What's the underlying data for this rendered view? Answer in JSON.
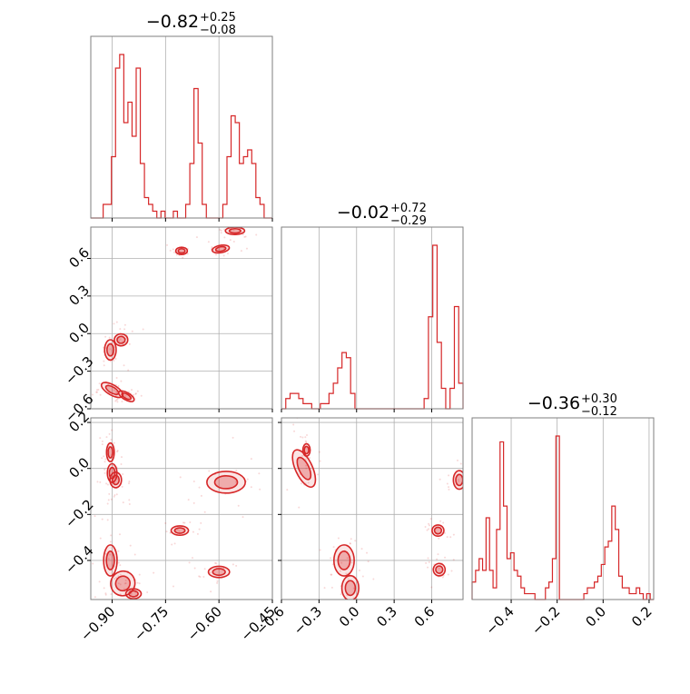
{
  "chart_data": {
    "type": "corner",
    "color": "#d62728",
    "parameters": [
      {
        "range": [
          -0.96,
          -0.45
        ],
        "ticks": [
          -0.9,
          -0.75,
          -0.6,
          -0.45
        ],
        "tick_labels": [
          "−0.90",
          "−0.75",
          "−0.60",
          "−0.45"
        ]
      },
      {
        "range": [
          -0.6,
          0.85
        ],
        "ticks": [
          -0.6,
          -0.3,
          0.0,
          0.3,
          0.6
        ],
        "tick_labels": [
          "−0.6",
          "−0.3",
          "0.0",
          "0.3",
          "0.6"
        ]
      },
      {
        "range": [
          -0.57,
          0.22
        ],
        "ticks": [
          -0.4,
          -0.2,
          0.0,
          0.2
        ],
        "tick_labels": [
          "−0.4",
          "−0.2",
          "0.0",
          "0.2"
        ]
      }
    ],
    "titles": [
      {
        "median": "−0.82",
        "plus": "+0.25",
        "minus": "−0.08"
      },
      {
        "median": "−0.02",
        "plus": "+0.72",
        "minus": "−0.29"
      },
      {
        "median": "−0.36",
        "plus": "+0.30",
        "minus": "−0.12"
      }
    ],
    "histograms": [
      {
        "values": [
          0,
          0,
          0,
          2,
          2,
          9,
          22,
          24,
          14,
          17,
          12,
          22,
          8,
          3,
          2,
          1,
          0,
          1,
          0,
          0,
          1,
          0,
          0,
          2,
          8,
          19,
          11,
          2,
          0,
          0,
          0,
          0,
          2,
          9,
          15,
          14,
          8,
          9,
          10,
          8,
          3,
          2,
          0,
          0
        ]
      },
      {
        "values": [
          0,
          2,
          3,
          3,
          2,
          1,
          1,
          0,
          0,
          1,
          1,
          3,
          5,
          8,
          11,
          10,
          3,
          0,
          0,
          0,
          0,
          0,
          0,
          0,
          0,
          0,
          0,
          0,
          0,
          0,
          0,
          0,
          0,
          2,
          18,
          32,
          13,
          4,
          0,
          4,
          20,
          5
        ]
      },
      {
        "values": [
          3,
          5,
          7,
          5,
          14,
          5,
          2,
          12,
          27,
          16,
          7,
          8,
          5,
          4,
          2,
          1,
          1,
          1,
          0,
          0,
          0,
          2,
          3,
          7,
          28,
          0,
          0,
          0,
          0,
          0,
          0,
          0,
          1,
          2,
          2,
          3,
          4,
          6,
          9,
          10,
          16,
          12,
          4,
          2,
          2,
          1,
          1,
          2,
          1,
          0,
          1,
          0
        ]
      }
    ],
    "contour_panels": [
      {
        "x": 0,
        "y": 1,
        "blobs": [
          {
            "x": -0.705,
            "y": 0.66,
            "sx": 0.012,
            "sy": 0.015,
            "rot": 0
          },
          {
            "x": -0.595,
            "y": 0.675,
            "sx": 0.018,
            "sy": 0.018,
            "rot": 10
          },
          {
            "x": -0.555,
            "y": 0.82,
            "sx": 0.02,
            "sy": 0.018,
            "rot": 0
          },
          {
            "x": -0.875,
            "y": -0.05,
            "sx": 0.014,
            "sy": 0.035,
            "rot": 0
          },
          {
            "x": -0.905,
            "y": -0.13,
            "sx": 0.012,
            "sy": 0.06,
            "rot": 0
          },
          {
            "x": -0.9,
            "y": -0.45,
            "sx": 0.025,
            "sy": 0.03,
            "rot": -30
          },
          {
            "x": -0.86,
            "y": -0.5,
            "sx": 0.018,
            "sy": 0.015,
            "rot": -30
          }
        ]
      },
      {
        "x": 0,
        "y": 2,
        "blobs": [
          {
            "x": -0.905,
            "y": 0.07,
            "sx": 0.008,
            "sy": 0.03,
            "rot": 0
          },
          {
            "x": -0.9,
            "y": -0.02,
            "sx": 0.01,
            "sy": 0.03,
            "rot": 0
          },
          {
            "x": -0.89,
            "y": -0.05,
            "sx": 0.012,
            "sy": 0.025,
            "rot": 0
          },
          {
            "x": -0.58,
            "y": -0.06,
            "sx": 0.04,
            "sy": 0.035,
            "rot": 0
          },
          {
            "x": -0.71,
            "y": -0.27,
            "sx": 0.018,
            "sy": 0.015,
            "rot": 0
          },
          {
            "x": -0.6,
            "y": -0.45,
            "sx": 0.022,
            "sy": 0.018,
            "rot": 0
          },
          {
            "x": -0.905,
            "y": -0.4,
            "sx": 0.014,
            "sy": 0.05,
            "rot": 0
          },
          {
            "x": -0.87,
            "y": -0.5,
            "sx": 0.025,
            "sy": 0.04,
            "rot": -30
          },
          {
            "x": -0.84,
            "y": -0.545,
            "sx": 0.016,
            "sy": 0.016,
            "rot": 0
          }
        ]
      },
      {
        "x": 1,
        "y": 2,
        "blobs": [
          {
            "x": -0.42,
            "y": 0.0,
            "sx": 0.05,
            "sy": 0.065,
            "rot": 25
          },
          {
            "x": -0.4,
            "y": 0.08,
            "sx": 0.015,
            "sy": 0.02,
            "rot": 0
          },
          {
            "x": -0.1,
            "y": -0.4,
            "sx": 0.06,
            "sy": 0.05,
            "rot": 0
          },
          {
            "x": -0.05,
            "y": -0.52,
            "sx": 0.05,
            "sy": 0.04,
            "rot": 0
          },
          {
            "x": 0.65,
            "y": -0.27,
            "sx": 0.035,
            "sy": 0.018,
            "rot": 0
          },
          {
            "x": 0.66,
            "y": -0.44,
            "sx": 0.035,
            "sy": 0.02,
            "rot": 0
          },
          {
            "x": 0.82,
            "y": -0.05,
            "sx": 0.035,
            "sy": 0.03,
            "rot": 0
          }
        ]
      }
    ]
  }
}
